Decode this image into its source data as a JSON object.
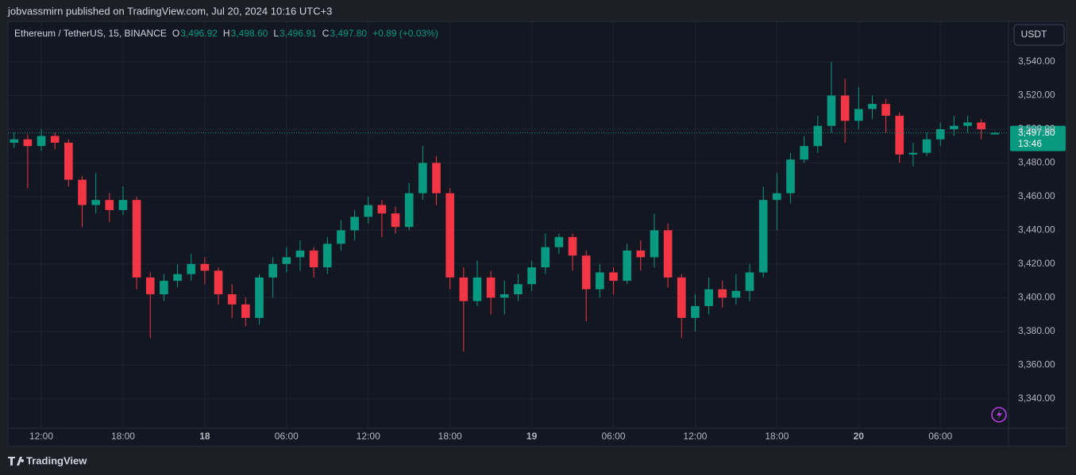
{
  "header": {
    "publisher": "jobvassmirn published on TradingView.com, Jul 20, 2024 10:16 UTC+3",
    "brand": "TradingView"
  },
  "chart_data": {
    "type": "candlestick",
    "title": "Ethereum / TetherUS, 15, BINANCE",
    "legend": [
      {
        "key": "O",
        "value": "3,496.92"
      },
      {
        "key": "H",
        "value": "3,498.60"
      },
      {
        "key": "L",
        "value": "3,496.91"
      },
      {
        "key": "C",
        "value": "3,497.80"
      }
    ],
    "change": "+0.89 (+0.03%)",
    "currency": "USDT",
    "last_price": {
      "value": 3497.8,
      "label": "3,497.80"
    },
    "countdown": "13:46",
    "up_color": "#089981",
    "down_color": "#f23645",
    "grid": true,
    "x": [
      10,
      11,
      12,
      13,
      14,
      15,
      16,
      17,
      18,
      19,
      20,
      21,
      22,
      23,
      24,
      25,
      26,
      27,
      28,
      29,
      30,
      31,
      32,
      33,
      34,
      35,
      36,
      37,
      38,
      39,
      40,
      41,
      42,
      43,
      44,
      45,
      46,
      47,
      48,
      49,
      50,
      51,
      52,
      53,
      54,
      55,
      56,
      57,
      58,
      59,
      60,
      61,
      62,
      63,
      64,
      65,
      66,
      67,
      68,
      69,
      70,
      71,
      72,
      73,
      74,
      75,
      76,
      77,
      78,
      79,
      80,
      81,
      82
    ],
    "open": [
      3492,
      3494,
      3490,
      3496,
      3492,
      3470,
      3455,
      3458,
      3452,
      3458,
      3412,
      3402,
      3410,
      3414,
      3420,
      3416,
      3402,
      3396,
      3388,
      3412,
      3420,
      3424,
      3428,
      3418,
      3432,
      3440,
      3448,
      3455,
      3450,
      3442,
      3462,
      3480,
      3462,
      3412,
      3398,
      3412,
      3400,
      3402,
      3408,
      3418,
      3430,
      3436,
      3425,
      3405,
      3415,
      3410,
      3428,
      3424,
      3440,
      3412,
      3388,
      3395,
      3405,
      3400,
      3404,
      3415,
      3458,
      3462,
      3482,
      3490,
      3502,
      3520,
      3505,
      3512,
      3515,
      3508,
      3485,
      3486,
      3494,
      3500,
      3502,
      3504,
      3496.92
    ],
    "high": [
      3498,
      3497,
      3500,
      3498,
      3494,
      3472,
      3474,
      3462,
      3466,
      3460,
      3415,
      3414,
      3420,
      3426,
      3424,
      3418,
      3408,
      3400,
      3414,
      3424,
      3430,
      3434,
      3430,
      3436,
      3446,
      3452,
      3460,
      3458,
      3454,
      3468,
      3490,
      3484,
      3465,
      3418,
      3422,
      3416,
      3410,
      3414,
      3422,
      3438,
      3438,
      3438,
      3428,
      3420,
      3418,
      3432,
      3434,
      3450,
      3444,
      3414,
      3402,
      3412,
      3410,
      3414,
      3420,
      3466,
      3474,
      3486,
      3496,
      3508,
      3540,
      3530,
      3525,
      3520,
      3518,
      3510,
      3492,
      3498,
      3504,
      3508,
      3508,
      3506,
      3498.6
    ],
    "low": [
      3489,
      3465,
      3487,
      3488,
      3466,
      3442,
      3450,
      3445,
      3449,
      3405,
      3376,
      3398,
      3406,
      3410,
      3408,
      3396,
      3388,
      3383,
      3384,
      3400,
      3415,
      3416,
      3412,
      3414,
      3428,
      3434,
      3444,
      3436,
      3438,
      3440,
      3458,
      3455,
      3405,
      3368,
      3395,
      3390,
      3390,
      3398,
      3404,
      3414,
      3426,
      3416,
      3386,
      3400,
      3402,
      3408,
      3416,
      3418,
      3406,
      3376,
      3380,
      3390,
      3394,
      3396,
      3398,
      3412,
      3440,
      3456,
      3480,
      3486,
      3498,
      3492,
      3500,
      3506,
      3498,
      3480,
      3478,
      3484,
      3490,
      3496,
      3498,
      3494,
      3496.91
    ],
    "close": [
      3494,
      3490,
      3496,
      3492,
      3470,
      3455,
      3458,
      3452,
      3458,
      3412,
      3402,
      3410,
      3414,
      3420,
      3416,
      3402,
      3396,
      3388,
      3412,
      3420,
      3424,
      3428,
      3418,
      3432,
      3440,
      3448,
      3455,
      3450,
      3442,
      3462,
      3480,
      3462,
      3412,
      3398,
      3412,
      3400,
      3402,
      3408,
      3418,
      3430,
      3436,
      3425,
      3405,
      3415,
      3410,
      3428,
      3424,
      3440,
      3412,
      3388,
      3395,
      3405,
      3400,
      3404,
      3415,
      3458,
      3462,
      3482,
      3490,
      3502,
      3520,
      3505,
      3512,
      3515,
      3508,
      3485,
      3486,
      3494,
      3500,
      3502,
      3504,
      3500,
      3497.8
    ],
    "xlim": [
      9.55,
      83.0
    ],
    "xticks": [
      {
        "value": 12,
        "label": "12:00"
      },
      {
        "value": 18,
        "label": "18:00"
      },
      {
        "value": 24,
        "label": "18"
      },
      {
        "value": 30,
        "label": "06:00"
      },
      {
        "value": 36,
        "label": "12:00"
      },
      {
        "value": 42,
        "label": "18:00"
      },
      {
        "value": 48,
        "label": "19"
      },
      {
        "value": 54,
        "label": "06:00"
      },
      {
        "value": 60,
        "label": "12:00"
      },
      {
        "value": 66,
        "label": "18:00"
      },
      {
        "value": 72,
        "label": "20"
      },
      {
        "value": 78,
        "label": "06:00"
      }
    ],
    "ylim": [
      3322.5,
      3564
    ],
    "yticks": [
      {
        "value": 3340,
        "label": "3,340.00"
      },
      {
        "value": 3360,
        "label": "3,360.00"
      },
      {
        "value": 3380,
        "label": "3,380.00"
      },
      {
        "value": 3400,
        "label": "3,400.00"
      },
      {
        "value": 3420,
        "label": "3,420.00"
      },
      {
        "value": 3440,
        "label": "3,440.00"
      },
      {
        "value": 3460,
        "label": "3,460.00"
      },
      {
        "value": 3480,
        "label": "3,480.00"
      },
      {
        "value": 3500,
        "label": "3,500.00"
      },
      {
        "value": 3520,
        "label": "3,520.00"
      },
      {
        "value": 3540,
        "label": "3,540.00"
      }
    ]
  }
}
